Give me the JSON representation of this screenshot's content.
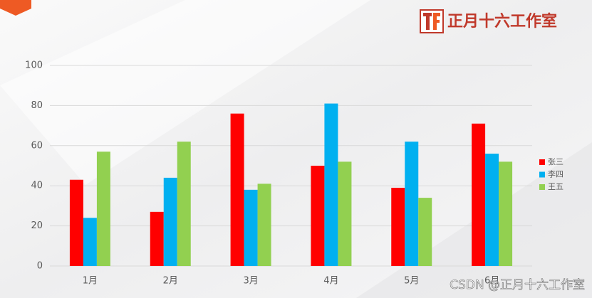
{
  "chart_data": {
    "type": "bar",
    "categories": [
      "1月",
      "2月",
      "3月",
      "4月",
      "5月",
      "6月"
    ],
    "series": [
      {
        "name": "张三",
        "color": "#ff0000",
        "values": [
          43,
          27,
          76,
          50,
          39,
          71
        ]
      },
      {
        "name": "李四",
        "color": "#00b0f0",
        "values": [
          24,
          44,
          38,
          81,
          62,
          56
        ]
      },
      {
        "name": "王五",
        "color": "#92d050",
        "values": [
          57,
          62,
          41,
          52,
          34,
          52
        ]
      }
    ],
    "ylim": [
      0,
      100
    ],
    "yticks": [
      0,
      20,
      40,
      60,
      80,
      100
    ],
    "grid": true,
    "legend": "right"
  },
  "logo_text": "正月十六工作室",
  "watermark": "CSDN @正月十六工作室"
}
